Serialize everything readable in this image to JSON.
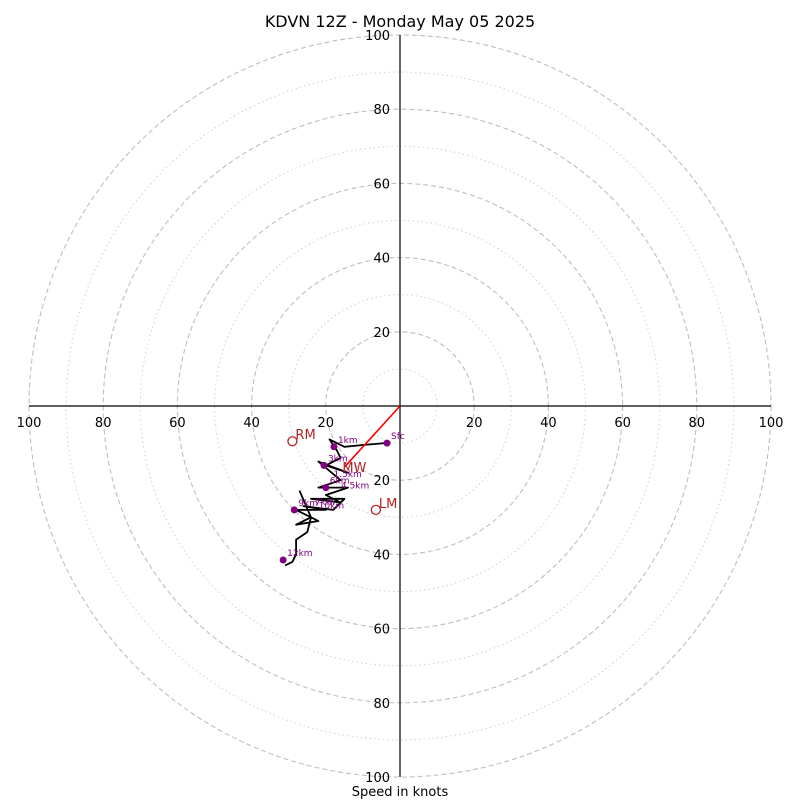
{
  "chart_data": {
    "type": "scatter",
    "title": "KDVN 12Z - Monday May 05 2025",
    "xlabel": "Speed in knots",
    "ylabel": "",
    "xlim": [
      -100,
      100
    ],
    "ylim": [
      -100,
      100
    ],
    "grid": true,
    "rings_major": [
      20,
      40,
      60,
      80,
      100
    ],
    "rings_minor": [
      10,
      30,
      50,
      70,
      90
    ],
    "tick_labels": [
      "100",
      "80",
      "60",
      "40",
      "20"
    ],
    "hodograph_trace": [
      [
        -4,
        -10
      ],
      [
        -10,
        -10.5
      ],
      [
        -15,
        -11
      ],
      [
        -19,
        -9
      ],
      [
        -17,
        -12
      ],
      [
        -16,
        -14
      ],
      [
        -20,
        -16
      ],
      [
        -14,
        -18
      ],
      [
        -22,
        -15
      ],
      [
        -16,
        -20
      ],
      [
        -22,
        -22
      ],
      [
        -14,
        -22
      ],
      [
        -20,
        -24
      ],
      [
        -16,
        -26
      ],
      [
        -24,
        -25
      ],
      [
        -15,
        -25
      ],
      [
        -18,
        -28
      ],
      [
        -26,
        -27
      ],
      [
        -20,
        -28
      ],
      [
        -28,
        -28
      ],
      [
        -22,
        -31
      ],
      [
        -28,
        -32
      ],
      [
        -24,
        -30
      ],
      [
        -27,
        -23
      ],
      [
        -24,
        -30
      ],
      [
        -25,
        -34
      ],
      [
        -28,
        -36
      ],
      [
        -28,
        -40
      ],
      [
        -29,
        -42
      ],
      [
        -31,
        -43
      ]
    ],
    "height_markers": [
      {
        "label": "Sfc",
        "x": -3.5,
        "y": -10
      },
      {
        "label": "1km",
        "x": -17.8,
        "y": -11
      },
      {
        "label": "3km",
        "x": -20.5,
        "y": -16
      },
      {
        "label": "6km",
        "x": -20,
        "y": -22
      },
      {
        "label": "9km",
        "x": -28.5,
        "y": -28
      },
      {
        "label": "12km",
        "x": -31.5,
        "y": -41.5
      }
    ],
    "clutter_labels": [
      {
        "label": "1.5km",
        "x": -19,
        "y": -20
      },
      {
        "label": "4.5km",
        "x": -17,
        "y": -23
      },
      {
        "label": "7km",
        "x": -24,
        "y": -27.5
      },
      {
        "label": "10km",
        "x": -23,
        "y": -28.5
      }
    ],
    "storm_motion": [
      {
        "label": "RM",
        "x": -29,
        "y": -9.5,
        "color": "#b22222"
      },
      {
        "label": "LM",
        "x": -6.5,
        "y": -28,
        "color": "#b22222"
      }
    ],
    "mean_wind": {
      "label": "MW",
      "x": -15,
      "y": -16.5,
      "color": "#b22222"
    },
    "shear_vector": {
      "from": [
        0,
        0
      ],
      "to": [
        -15,
        -16.5
      ],
      "color": "#ff0000"
    },
    "colors": {
      "trace": "#000000",
      "marker": "#800080",
      "marker_label": "#800080",
      "ring": "#bfbfbf",
      "axis": "#000000"
    }
  }
}
